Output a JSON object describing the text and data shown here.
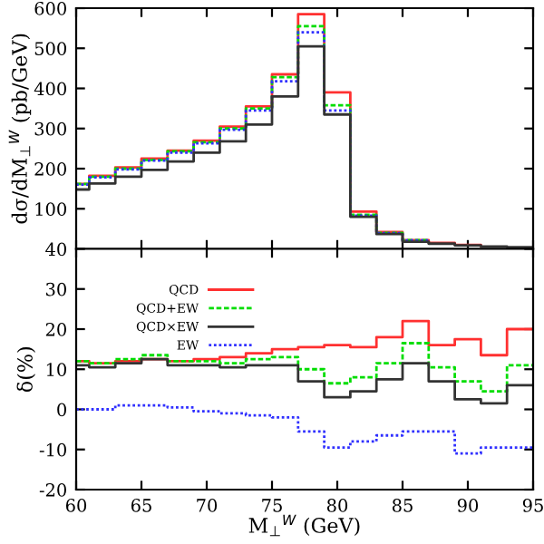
{
  "chart_data": [
    {
      "type": "step",
      "ylabel": "dσ/dM$_{⊥}$$^{W}$ (pb/GeV)",
      "x": [
        60,
        61,
        63,
        65,
        67,
        69,
        71,
        73,
        75,
        77,
        79,
        81,
        83,
        85,
        87,
        89,
        91,
        93,
        95
      ],
      "series": [
        {
          "color": "#ff3030",
          "line_style": "solid",
          "values": [
            162,
            182,
            203,
            225,
            245,
            270,
            305,
            355,
            435,
            585,
            390,
            93,
            42,
            22,
            15,
            10,
            7,
            null,
            null
          ]
        },
        {
          "color": "#00dd00",
          "line_style": "dashed",
          "values": [
            162,
            180,
            200,
            222,
            243,
            266,
            300,
            350,
            428,
            555,
            358,
            85,
            40,
            22,
            14,
            null,
            null,
            null,
            null
          ]
        },
        {
          "color": "#3030ff",
          "line_style": "dotted",
          "values": [
            160,
            178,
            198,
            220,
            240,
            263,
            297,
            345,
            418,
            540,
            345,
            83,
            39,
            21,
            14,
            null,
            null,
            null,
            null
          ]
        },
        {
          "color": "#333333",
          "line_style": "solid",
          "values": [
            148,
            163,
            180,
            197,
            218,
            240,
            268,
            310,
            380,
            505,
            335,
            80,
            37,
            18,
            13,
            9,
            6,
            4,
            4
          ]
        }
      ],
      "xlim": [
        60,
        95
      ],
      "xticks": [
        60,
        65,
        70,
        75,
        80,
        85,
        90,
        95
      ],
      "ylim": [
        0,
        600
      ],
      "yticks": [
        100,
        200,
        300,
        400,
        500,
        600
      ],
      "tick_labels": "y",
      "grid": false,
      "legend": false
    },
    {
      "type": "step",
      "xlabel": "M$_{⊥}$$^{W}$ (GeV)",
      "ylabel": "δ(%)",
      "x": [
        60,
        61,
        63,
        65,
        67,
        69,
        71,
        73,
        75,
        77,
        79,
        81,
        83,
        85,
        87,
        89,
        91,
        93,
        95
      ],
      "series": [
        {
          "name": "QCD",
          "color": "#ff3030",
          "line_style": "solid",
          "values": [
            12,
            11.5,
            12,
            12.5,
            12,
            12.5,
            13,
            14,
            15,
            15.5,
            16,
            15.5,
            18,
            22,
            16,
            17.5,
            13.5,
            20,
            20
          ]
        },
        {
          "name": "QCD+EW",
          "color": "#00dd00",
          "line_style": "dashed",
          "values": [
            12,
            11.5,
            12.5,
            13.5,
            12,
            12,
            11.5,
            12.5,
            13,
            10,
            6.5,
            8,
            11.5,
            16.5,
            10.5,
            7,
            4.5,
            11,
            11
          ]
        },
        {
          "name": "QCD×EW",
          "color": "#333333",
          "line_style": "solid",
          "values": [
            11,
            10.5,
            11.5,
            12.5,
            11,
            11,
            10.5,
            11,
            11,
            7,
            3,
            4.5,
            7.5,
            11.5,
            7,
            2.5,
            1.5,
            6,
            6
          ]
        },
        {
          "name": "EW",
          "color": "#3030ff",
          "line_style": "dotted",
          "values": [
            0,
            0,
            1,
            1,
            0.5,
            -0.5,
            -1,
            -1.5,
            -2,
            -5.5,
            -9.5,
            -8,
            -6.5,
            -5.5,
            -5.5,
            -11,
            -9.5,
            -9.5,
            -9.5
          ]
        }
      ],
      "xlim": [
        60,
        95
      ],
      "xticks": [
        60,
        65,
        70,
        75,
        80,
        85,
        90,
        95
      ],
      "ylim": [
        -20,
        40
      ],
      "yticks": [
        -20,
        -10,
        0,
        10,
        20,
        30,
        40
      ],
      "grid": false,
      "legend": "top left"
    }
  ]
}
